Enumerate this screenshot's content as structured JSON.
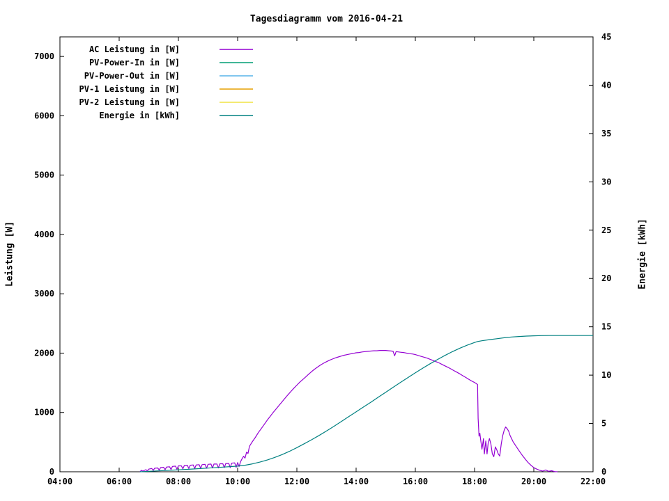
{
  "title": "Tagesdiagramm vom 2016-04-21",
  "axes": {
    "x": {
      "tick_labels": [
        "04:00",
        "06:00",
        "08:00",
        "10:00",
        "12:00",
        "14:00",
        "16:00",
        "18:00",
        "20:00",
        "22:00"
      ],
      "tick_hours": [
        4,
        6,
        8,
        10,
        12,
        14,
        16,
        18,
        20,
        22
      ]
    },
    "y_left": {
      "label": "Leistung [W]",
      "tick_values": [
        0,
        1000,
        2000,
        3000,
        4000,
        5000,
        6000,
        7000
      ]
    },
    "y_right": {
      "label": "Energie [kWh]",
      "tick_values": [
        0,
        5,
        10,
        15,
        20,
        25,
        30,
        35,
        40,
        45
      ]
    }
  },
  "chart_data": {
    "type": "line",
    "title": "Tagesdiagramm vom 2016-04-21",
    "xlabel": "",
    "ylabel_left": "Leistung [W]",
    "ylabel_right": "Energie [kWh]",
    "x_range_hours": [
      4,
      22
    ],
    "ylim_left": [
      0,
      7330
    ],
    "ylim_right": [
      0,
      45
    ],
    "grid": false,
    "legend_position": "top-left-inside",
    "series": [
      {
        "name": "AC Leistung in [W]",
        "axis": "left",
        "color": "#9400d3",
        "points": [
          [
            6.7,
            0
          ],
          [
            6.75,
            25
          ],
          [
            6.8,
            10
          ],
          [
            6.9,
            35
          ],
          [
            6.95,
            15
          ],
          [
            7.0,
            45
          ],
          [
            7.1,
            55
          ],
          [
            7.15,
            25
          ],
          [
            7.2,
            60
          ],
          [
            7.3,
            65
          ],
          [
            7.35,
            30
          ],
          [
            7.4,
            70
          ],
          [
            7.5,
            75
          ],
          [
            7.55,
            35
          ],
          [
            7.6,
            80
          ],
          [
            7.7,
            85
          ],
          [
            7.75,
            40
          ],
          [
            7.8,
            90
          ],
          [
            7.9,
            95
          ],
          [
            7.95,
            45
          ],
          [
            8.0,
            100
          ],
          [
            8.1,
            100
          ],
          [
            8.15,
            50
          ],
          [
            8.2,
            105
          ],
          [
            8.3,
            110
          ],
          [
            8.35,
            55
          ],
          [
            8.4,
            110
          ],
          [
            8.5,
            115
          ],
          [
            8.55,
            55
          ],
          [
            8.6,
            115
          ],
          [
            8.7,
            120
          ],
          [
            8.75,
            60
          ],
          [
            8.8,
            120
          ],
          [
            8.9,
            125
          ],
          [
            8.95,
            60
          ],
          [
            9.0,
            125
          ],
          [
            9.1,
            130
          ],
          [
            9.15,
            65
          ],
          [
            9.2,
            130
          ],
          [
            9.3,
            130
          ],
          [
            9.35,
            65
          ],
          [
            9.4,
            135
          ],
          [
            9.5,
            135
          ],
          [
            9.55,
            70
          ],
          [
            9.6,
            140
          ],
          [
            9.7,
            140
          ],
          [
            9.75,
            70
          ],
          [
            9.8,
            145
          ],
          [
            9.9,
            150
          ],
          [
            9.95,
            75
          ],
          [
            10.0,
            155
          ],
          [
            10.05,
            90
          ],
          [
            10.1,
            170
          ],
          [
            10.15,
            220
          ],
          [
            10.2,
            260
          ],
          [
            10.25,
            230
          ],
          [
            10.3,
            330
          ],
          [
            10.35,
            310
          ],
          [
            10.4,
            430
          ],
          [
            10.45,
            470
          ],
          [
            10.5,
            510
          ],
          [
            10.6,
            580
          ],
          [
            10.7,
            660
          ],
          [
            10.8,
            730
          ],
          [
            10.9,
            800
          ],
          [
            11.0,
            870
          ],
          [
            11.1,
            935
          ],
          [
            11.2,
            1000
          ],
          [
            11.3,
            1060
          ],
          [
            11.4,
            1120
          ],
          [
            11.5,
            1180
          ],
          [
            11.6,
            1240
          ],
          [
            11.7,
            1300
          ],
          [
            11.8,
            1355
          ],
          [
            11.9,
            1410
          ],
          [
            12.0,
            1460
          ],
          [
            12.1,
            1510
          ],
          [
            12.2,
            1555
          ],
          [
            12.3,
            1600
          ],
          [
            12.4,
            1645
          ],
          [
            12.5,
            1690
          ],
          [
            12.6,
            1730
          ],
          [
            12.7,
            1765
          ],
          [
            12.8,
            1800
          ],
          [
            12.9,
            1830
          ],
          [
            13.0,
            1855
          ],
          [
            13.1,
            1880
          ],
          [
            13.2,
            1900
          ],
          [
            13.3,
            1920
          ],
          [
            13.4,
            1935
          ],
          [
            13.5,
            1950
          ],
          [
            13.6,
            1965
          ],
          [
            13.7,
            1975
          ],
          [
            13.8,
            1985
          ],
          [
            13.9,
            1995
          ],
          [
            14.0,
            2005
          ],
          [
            14.1,
            2010
          ],
          [
            14.2,
            2020
          ],
          [
            14.3,
            2025
          ],
          [
            14.4,
            2030
          ],
          [
            14.5,
            2035
          ],
          [
            14.6,
            2040
          ],
          [
            14.7,
            2040
          ],
          [
            14.8,
            2045
          ],
          [
            14.9,
            2045
          ],
          [
            15.0,
            2045
          ],
          [
            15.1,
            2040
          ],
          [
            15.2,
            2035
          ],
          [
            15.25,
            2030
          ],
          [
            15.3,
            1955
          ],
          [
            15.35,
            2025
          ],
          [
            15.5,
            2015
          ],
          [
            15.6,
            2010
          ],
          [
            15.7,
            2000
          ],
          [
            15.8,
            1990
          ],
          [
            15.9,
            1985
          ],
          [
            16.0,
            1975
          ],
          [
            16.1,
            1960
          ],
          [
            16.2,
            1945
          ],
          [
            16.3,
            1930
          ],
          [
            16.4,
            1915
          ],
          [
            16.5,
            1895
          ],
          [
            16.6,
            1875
          ],
          [
            16.7,
            1855
          ],
          [
            16.8,
            1835
          ],
          [
            16.9,
            1810
          ],
          [
            17.0,
            1785
          ],
          [
            17.1,
            1760
          ],
          [
            17.2,
            1735
          ],
          [
            17.3,
            1705
          ],
          [
            17.4,
            1680
          ],
          [
            17.5,
            1650
          ],
          [
            17.6,
            1620
          ],
          [
            17.7,
            1590
          ],
          [
            17.8,
            1560
          ],
          [
            17.9,
            1530
          ],
          [
            18.0,
            1505
          ],
          [
            18.05,
            1490
          ],
          [
            18.1,
            1470
          ],
          [
            18.12,
            900
          ],
          [
            18.15,
            600
          ],
          [
            18.18,
            650
          ],
          [
            18.2,
            560
          ],
          [
            18.25,
            380
          ],
          [
            18.3,
            560
          ],
          [
            18.33,
            300
          ],
          [
            18.38,
            520
          ],
          [
            18.42,
            300
          ],
          [
            18.46,
            480
          ],
          [
            18.5,
            560
          ],
          [
            18.55,
            470
          ],
          [
            18.6,
            300
          ],
          [
            18.65,
            255
          ],
          [
            18.7,
            420
          ],
          [
            18.75,
            370
          ],
          [
            18.8,
            300
          ],
          [
            18.85,
            265
          ],
          [
            18.9,
            470
          ],
          [
            18.95,
            610
          ],
          [
            19.0,
            700
          ],
          [
            19.05,
            755
          ],
          [
            19.1,
            725
          ],
          [
            19.15,
            685
          ],
          [
            19.2,
            610
          ],
          [
            19.25,
            560
          ],
          [
            19.3,
            505
          ],
          [
            19.4,
            430
          ],
          [
            19.5,
            355
          ],
          [
            19.6,
            285
          ],
          [
            19.7,
            220
          ],
          [
            19.8,
            160
          ],
          [
            19.9,
            110
          ],
          [
            20.0,
            70
          ],
          [
            20.1,
            45
          ],
          [
            20.2,
            25
          ],
          [
            20.3,
            12
          ],
          [
            20.4,
            30
          ],
          [
            20.5,
            8
          ],
          [
            20.6,
            18
          ],
          [
            20.7,
            4
          ],
          [
            20.8,
            0
          ]
        ]
      },
      {
        "name": "PV-Power-In in [W]",
        "axis": "left",
        "color": "#009e73",
        "points": []
      },
      {
        "name": "PV-Power-Out in [W]",
        "axis": "left",
        "color": "#56b4e9",
        "points": []
      },
      {
        "name": "PV-1 Leistung in [W]",
        "axis": "left",
        "color": "#e69f00",
        "points": []
      },
      {
        "name": "PV-2 Leistung in [W]",
        "axis": "left",
        "color": "#f0e442",
        "points": []
      },
      {
        "name": "Energie in [kWh]",
        "axis": "right",
        "color": "#008080",
        "points": [
          [
            6.7,
            0
          ],
          [
            7.0,
            0.05
          ],
          [
            7.5,
            0.12
          ],
          [
            8.0,
            0.2
          ],
          [
            8.5,
            0.29
          ],
          [
            9.0,
            0.38
          ],
          [
            9.5,
            0.48
          ],
          [
            10.0,
            0.58
          ],
          [
            10.25,
            0.68
          ],
          [
            10.5,
            0.82
          ],
          [
            10.75,
            1.0
          ],
          [
            11.0,
            1.22
          ],
          [
            11.25,
            1.48
          ],
          [
            11.5,
            1.78
          ],
          [
            11.75,
            2.12
          ],
          [
            12.0,
            2.5
          ],
          [
            12.25,
            2.9
          ],
          [
            12.5,
            3.32
          ],
          [
            12.75,
            3.76
          ],
          [
            13.0,
            4.22
          ],
          [
            13.25,
            4.7
          ],
          [
            13.5,
            5.2
          ],
          [
            13.75,
            5.7
          ],
          [
            14.0,
            6.2
          ],
          [
            14.25,
            6.7
          ],
          [
            14.5,
            7.2
          ],
          [
            14.75,
            7.72
          ],
          [
            15.0,
            8.23
          ],
          [
            15.25,
            8.74
          ],
          [
            15.5,
            9.25
          ],
          [
            15.75,
            9.75
          ],
          [
            16.0,
            10.24
          ],
          [
            16.25,
            10.72
          ],
          [
            16.5,
            11.18
          ],
          [
            16.75,
            11.62
          ],
          [
            17.0,
            12.04
          ],
          [
            17.25,
            12.43
          ],
          [
            17.5,
            12.79
          ],
          [
            17.75,
            13.1
          ],
          [
            18.0,
            13.38
          ],
          [
            18.1,
            13.48
          ],
          [
            18.25,
            13.56
          ],
          [
            18.5,
            13.67
          ],
          [
            18.75,
            13.77
          ],
          [
            19.0,
            13.87
          ],
          [
            19.25,
            13.95
          ],
          [
            19.5,
            14.0
          ],
          [
            19.75,
            14.04
          ],
          [
            20.0,
            14.07
          ],
          [
            20.25,
            14.09
          ],
          [
            20.5,
            14.1
          ],
          [
            21.0,
            14.1
          ],
          [
            21.5,
            14.1
          ],
          [
            22.0,
            14.1
          ]
        ]
      }
    ]
  }
}
